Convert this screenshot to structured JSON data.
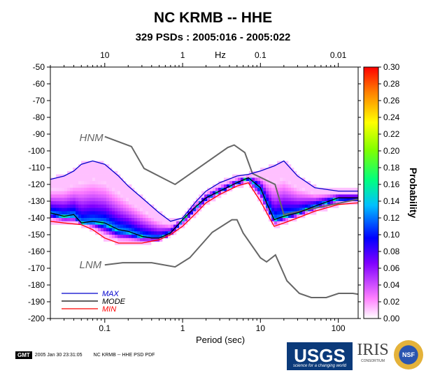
{
  "title": "NC KRMB -- HHE",
  "subtitle": "329 PSDs : 2005:016 - 2005:022",
  "footer": {
    "gmt_label": "GMT",
    "timestamp": "2005 Jan 30 23:31:05",
    "plot_label": "NC KRMB -- HHE PSD PDF"
  },
  "logos": {
    "usgs": "USGS",
    "usgs_tag": "science for a changing world",
    "iris": "IRIS",
    "iris_sub": "CONSORTIUM",
    "nsf": "NSF"
  },
  "chart_data": {
    "type": "heatmap",
    "title": "NC KRMB -- HHE",
    "subtitle": "329 PSDs : 2005:016 - 2005:022",
    "xlabel": "Period (sec)",
    "xlabel_top": "Hz",
    "ylabel": "",
    "colorbar_label": "Probability",
    "xscale": "log",
    "xlim": [
      0.02,
      180
    ],
    "ylim": [
      -200,
      -50
    ],
    "x_ticks": [
      0.1,
      1,
      10,
      100
    ],
    "x_tick_labels": [
      "0.1",
      "1",
      "10",
      "100"
    ],
    "x_top_ticks": [
      0.1,
      1,
      10,
      100
    ],
    "x_top_tick_labels": [
      "10",
      "1",
      "0.1",
      "0.01"
    ],
    "y_ticks": [
      -50,
      -60,
      -70,
      -80,
      -90,
      -100,
      -110,
      -120,
      -130,
      -140,
      -150,
      -160,
      -170,
      -180,
      -190,
      -200
    ],
    "colorbar_range": [
      0,
      0.3
    ],
    "colorbar_ticks": [
      "0.00",
      "0.02",
      "0.04",
      "0.06",
      "0.08",
      "0.10",
      "0.12",
      "0.14",
      "0.16",
      "0.18",
      "0.20",
      "0.22",
      "0.24",
      "0.26",
      "0.28",
      "0.30"
    ],
    "annotations": [
      {
        "text": "HNM",
        "x": 0.04,
        "y": -92
      },
      {
        "text": "LNM",
        "x": 0.04,
        "y": -168
      }
    ],
    "legend_position": "bottom-left",
    "series": [
      {
        "name": "MAX",
        "color": "#0000cc",
        "x": [
          0.02,
          0.03,
          0.04,
          0.05,
          0.07,
          0.1,
          0.15,
          0.2,
          0.3,
          0.5,
          0.7,
          1,
          1.5,
          2,
          3,
          5,
          7,
          10,
          15,
          20,
          30,
          50,
          100,
          180
        ],
        "y": [
          -117,
          -115,
          -112,
          -108,
          -106,
          -108,
          -115,
          -121,
          -128,
          -137,
          -142,
          -140,
          -130,
          -124,
          -119,
          -115,
          -114,
          -112,
          -109,
          -106,
          -115,
          -122,
          -124,
          -124
        ]
      },
      {
        "name": "MODE",
        "color": "#000000",
        "x": [
          0.02,
          0.03,
          0.04,
          0.05,
          0.07,
          0.1,
          0.15,
          0.2,
          0.3,
          0.4,
          0.5,
          0.7,
          1,
          1.5,
          2,
          3,
          5,
          7,
          10,
          12,
          15,
          20,
          30,
          50,
          100,
          180
        ],
        "y": [
          -137,
          -139,
          -138,
          -143,
          -142,
          -143,
          -147,
          -148,
          -151,
          -152,
          -152,
          -149,
          -141,
          -133,
          -128,
          -124,
          -119,
          -116,
          -122,
          -131,
          -141,
          -139,
          -137,
          -133,
          -128,
          -128
        ]
      },
      {
        "name": "MIN",
        "color": "#ff0000",
        "x": [
          0.02,
          0.03,
          0.05,
          0.07,
          0.1,
          0.15,
          0.2,
          0.3,
          0.5,
          0.7,
          1,
          1.5,
          2,
          3,
          5,
          7,
          10,
          15,
          20,
          30,
          50,
          100,
          180
        ],
        "y": [
          -142,
          -143,
          -144,
          -147,
          -152,
          -155,
          -155,
          -155,
          -153,
          -150,
          -145,
          -137,
          -131,
          -126,
          -121,
          -119,
          -130,
          -145,
          -143,
          -140,
          -136,
          -132,
          -131
        ]
      }
    ],
    "reference_models": [
      {
        "name": "HNM",
        "color": "#666666",
        "x": [
          0.1,
          0.22,
          0.32,
          0.8,
          3.8,
          4.6,
          6.3,
          7.9,
          15.4,
          20,
          354.8
        ],
        "y": [
          -91.5,
          -97.4,
          -110.5,
          -120,
          -98,
          -96.5,
          -101,
          -113.5,
          -120,
          -138,
          -126
        ]
      },
      {
        "name": "LNM",
        "color": "#666666",
        "x": [
          0.1,
          0.17,
          0.4,
          0.8,
          1.24,
          2.4,
          4.3,
          5,
          6,
          10,
          12,
          15.6,
          21.9,
          31.6,
          45,
          70,
          101,
          154,
          328
        ],
        "y": [
          -168,
          -166.7,
          -166.7,
          -169.2,
          -163.7,
          -148.6,
          -141.1,
          -141.1,
          -149,
          -163.8,
          -166.2,
          -162.1,
          -177.5,
          -185,
          -187.5,
          -187.5,
          -185,
          -185,
          -187.5
        ]
      }
    ]
  }
}
